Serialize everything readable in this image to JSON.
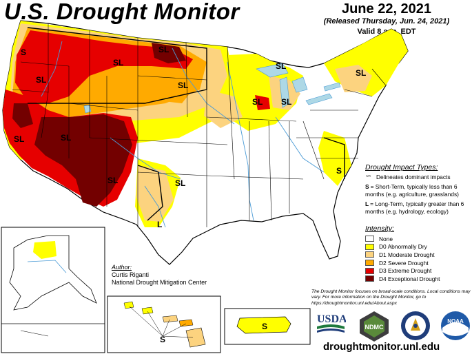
{
  "header": {
    "title": "U.S. Drought Monitor",
    "date": "June 22, 2021",
    "released": "(Released Thursday, Jun. 24, 2021)",
    "valid": "Valid 8 a.m. EDT"
  },
  "impact_legend": {
    "heading": "Drought Impact Types:",
    "delineates": "Delineates dominant impacts",
    "short_term_code": "S",
    "short_term": "= Short-Term, typically less than 6 months (e.g. agriculture, grasslands)",
    "long_term_code": "L",
    "long_term": "= Long-Term, typically greater than 6 months (e.g. hydrology, ecology)"
  },
  "intensity_legend": {
    "heading": "Intensity:",
    "items": [
      {
        "label": "None",
        "color": "#ffffff"
      },
      {
        "label": "D0 Abnormally Dry",
        "color": "#ffff00"
      },
      {
        "label": "D1 Moderate Drought",
        "color": "#fcd37f"
      },
      {
        "label": "D2 Severe Drought",
        "color": "#ffaa00"
      },
      {
        "label": "D3 Extreme Drought",
        "color": "#e60000"
      },
      {
        "label": "D4 Exceptional Drought",
        "color": "#730000"
      }
    ]
  },
  "author": {
    "label": "Author:",
    "name": "Curtis Riganti",
    "org": "National Drought Mitigation Center"
  },
  "note": "The Drought Monitor focuses on broad-scale conditions. Local conditions may vary. For more information on the Drought Monitor, go to https://droughtmonitor.unl.edu/About.aspx",
  "logos": {
    "usda": "USDA",
    "ndmc": "NDMC",
    "noaa": "NOAA"
  },
  "website": "droughtmonitor.unl.edu",
  "map_labels": {
    "sl": "SL",
    "s": "S",
    "l": "L"
  },
  "colors": {
    "water": "#add8e6",
    "river": "#4a9bd6",
    "border": "#000000"
  }
}
